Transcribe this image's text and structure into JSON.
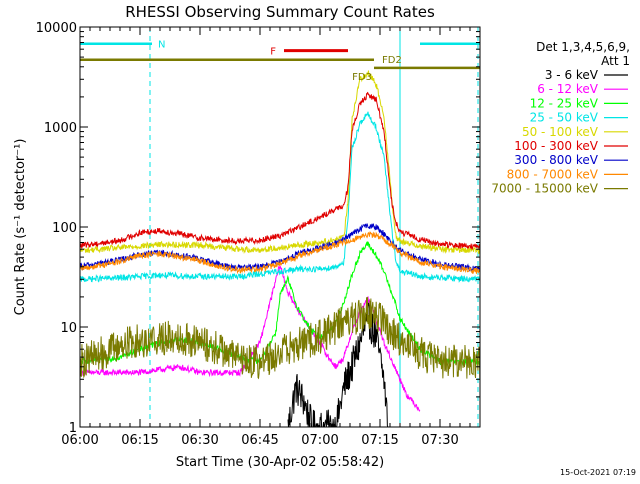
{
  "chart_data": {
    "type": "line",
    "title": "RHESSI Observing Summary Count Rates",
    "xlabel": "Start Time (30-Apr-02 05:58:42)",
    "ylabel": "Count Rate (s⁻¹ detector⁻¹)",
    "yscale": "log",
    "xlim_minutes": [
      0,
      100
    ],
    "ylim": [
      1,
      10000
    ],
    "x_ticks": [
      {
        "minute": 0,
        "label": "06:00"
      },
      {
        "minute": 15,
        "label": "06:15"
      },
      {
        "minute": 30,
        "label": "06:30"
      },
      {
        "minute": 45,
        "label": "06:45"
      },
      {
        "minute": 60,
        "label": "07:00"
      },
      {
        "minute": 75,
        "label": "07:15"
      },
      {
        "minute": 90,
        "label": "07:30"
      }
    ],
    "y_ticks": [
      {
        "value": 1,
        "label": "1"
      },
      {
        "value": 10,
        "label": "10"
      },
      {
        "value": 100,
        "label": "100"
      },
      {
        "value": 1000,
        "label": "1000"
      },
      {
        "value": 10000,
        "label": "10000"
      }
    ],
    "legend_title": [
      "Det 1,3,4,5,6,9,",
      "Att 1"
    ],
    "legend_position": "right",
    "flags": [
      {
        "label": "N",
        "color": "#00e5e5",
        "value": 6800,
        "segments": [
          [
            0,
            18
          ],
          [
            85,
            100
          ]
        ]
      },
      {
        "label": "F",
        "color": "#e00000",
        "value": 5800,
        "segments": [
          [
            51,
            67
          ]
        ]
      },
      {
        "label": "FD2",
        "color": "#7a7a00",
        "value": 4700,
        "segments": [
          [
            0,
            73.5
          ]
        ]
      },
      {
        "label": "FD3",
        "color": "#7a7a00",
        "value": 3900,
        "segments": [
          [
            73.5,
            100
          ]
        ]
      }
    ],
    "vertical_lines": [
      {
        "minute": 0,
        "style": "solid",
        "color": "#00e5e5"
      },
      {
        "minute": 17.5,
        "style": "dashed",
        "color": "#00e5e5"
      },
      {
        "minute": 80,
        "style": "solid",
        "color": "#00e5e5"
      },
      {
        "minute": 99.5,
        "style": "dashed",
        "color": "#00e5e5"
      }
    ],
    "series": [
      {
        "name": "3 - 6 keV",
        "color": "#000000",
        "x": [
          52,
          54,
          56,
          58,
          60,
          62,
          64,
          66,
          68,
          70,
          72,
          74,
          76,
          77
        ],
        "values": [
          1,
          2.5,
          1.8,
          1,
          1,
          1,
          1,
          2.5,
          4,
          7,
          12,
          8,
          3,
          1
        ]
      },
      {
        "name": "6 - 12 keV",
        "color": "#ff00ff",
        "x": [
          0,
          10,
          15,
          25,
          30,
          35,
          40,
          45,
          49,
          50,
          52,
          54,
          56,
          58,
          60,
          62,
          64,
          66,
          68,
          70,
          72,
          74,
          76,
          80,
          82,
          85
        ],
        "values": [
          3.5,
          3.5,
          3.5,
          4,
          3.5,
          3.5,
          3.5,
          7,
          30,
          42,
          22,
          16,
          12,
          9,
          7,
          5,
          4,
          5,
          9,
          14,
          19,
          12,
          7,
          3,
          2,
          1.5
        ]
      },
      {
        "name": "12 - 25 keV",
        "color": "#00ff00",
        "x": [
          0,
          10,
          15,
          20,
          25,
          30,
          35,
          40,
          45,
          49,
          50,
          52,
          54,
          56,
          58,
          60,
          62,
          64,
          66,
          68,
          70,
          72,
          74,
          76,
          78,
          80,
          85,
          90,
          100
        ],
        "values": [
          4.5,
          5,
          6,
          7,
          7.5,
          7,
          6,
          5,
          4.5,
          9,
          21,
          30,
          17,
          12,
          9,
          8,
          9,
          11,
          18,
          33,
          55,
          68,
          52,
          36,
          22,
          12,
          6,
          4.5,
          4.5
        ]
      },
      {
        "name": "25 - 50 keV",
        "color": "#00e5e5",
        "x": [
          0,
          10,
          20,
          30,
          40,
          45,
          50,
          55,
          60,
          64,
          66,
          67,
          68,
          70,
          72,
          74,
          76,
          78,
          79,
          80,
          85,
          90,
          100
        ],
        "values": [
          30,
          31,
          33,
          32,
          32,
          34,
          36,
          38,
          38,
          40,
          45,
          120,
          600,
          1100,
          1350,
          1000,
          500,
          90,
          45,
          36,
          32,
          31,
          30
        ]
      },
      {
        "name": "50 - 100 keV",
        "color": "#d8d800",
        "x": [
          0,
          10,
          20,
          30,
          40,
          45,
          50,
          55,
          60,
          64,
          66,
          67,
          68,
          70,
          72,
          74,
          76,
          78,
          79,
          80,
          85,
          90,
          100
        ],
        "values": [
          58,
          62,
          67,
          66,
          60,
          59,
          62,
          66,
          70,
          75,
          80,
          180,
          1200,
          3000,
          3500,
          2700,
          1300,
          180,
          80,
          72,
          65,
          60,
          58
        ]
      },
      {
        "name": "100 - 300 keV",
        "color": "#e00000",
        "x": [
          0,
          10,
          15,
          20,
          25,
          30,
          35,
          40,
          45,
          50,
          55,
          60,
          63,
          65,
          66,
          67,
          68,
          70,
          72,
          74,
          76,
          78,
          79,
          80,
          85,
          90,
          100
        ],
        "values": [
          65,
          73,
          88,
          92,
          85,
          78,
          74,
          72,
          74,
          82,
          100,
          125,
          145,
          155,
          170,
          250,
          900,
          1700,
          2100,
          1900,
          900,
          170,
          110,
          90,
          75,
          67,
          63
        ]
      },
      {
        "name": "300 - 800 keV",
        "color": "#0000c8",
        "x": [
          0,
          10,
          15,
          20,
          25,
          30,
          35,
          40,
          45,
          50,
          55,
          60,
          65,
          70,
          72,
          74,
          76,
          78,
          80,
          85,
          90,
          100
        ],
        "values": [
          40,
          47,
          53,
          55,
          52,
          48,
          42,
          39,
          40,
          45,
          55,
          62,
          72,
          95,
          103,
          100,
          85,
          70,
          58,
          48,
          42,
          38
        ]
      },
      {
        "name": "800 - 7000 keV",
        "color": "#ff8800",
        "x": [
          0,
          10,
          15,
          20,
          25,
          30,
          35,
          40,
          45,
          50,
          55,
          60,
          65,
          70,
          72,
          74,
          76,
          78,
          80,
          85,
          90,
          100
        ],
        "values": [
          38,
          45,
          52,
          54,
          50,
          46,
          40,
          37,
          38,
          43,
          52,
          60,
          68,
          80,
          84,
          82,
          75,
          66,
          56,
          45,
          40,
          36
        ]
      },
      {
        "name": "7000 - 15000 keV",
        "color": "#7a7a00",
        "x": [
          0,
          8,
          12,
          18,
          25,
          30,
          35,
          40,
          45,
          50,
          54,
          58,
          60,
          62,
          64,
          66,
          68,
          70,
          72,
          74,
          76,
          78,
          80,
          85,
          90,
          100
        ],
        "values": [
          4.5,
          6,
          7,
          7.5,
          8,
          7,
          6,
          4.8,
          4.5,
          5.5,
          6.5,
          7.5,
          8,
          9,
          10,
          11,
          12,
          13,
          14,
          13,
          11,
          9,
          7.5,
          5.5,
          4.5,
          4.5
        ]
      }
    ]
  },
  "footer": {
    "date_stamp": "15-Oct-2021 07:19"
  }
}
